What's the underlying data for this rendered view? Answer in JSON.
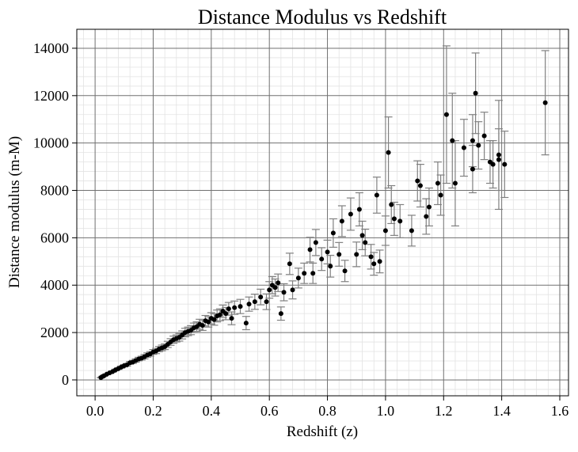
{
  "chart_data": {
    "type": "errorbar-scatter",
    "title": "Distance Modulus vs Redshift",
    "x_label": "Redshift (z)",
    "y_label": "Distance modulus (m-M)",
    "xlim": [
      -0.063,
      1.63
    ],
    "ylim": [
      -670,
      14800
    ],
    "xticks": [
      {
        "value": 0,
        "label": "0.0"
      },
      0.2,
      0.4,
      0.6,
      0.8,
      {
        "value": 1,
        "label": "1.0"
      },
      1.2,
      1.4,
      1.6
    ],
    "yticks": [
      0,
      2000,
      4000,
      6000,
      8000,
      10000,
      12000,
      14000
    ],
    "grid": true,
    "minor_grid_divisions": 5,
    "series": [
      {
        "color": "#000000",
        "error_color": "#808080",
        "x": [
          0.02,
          0.025,
          0.03,
          0.04,
          0.05,
          0.06,
          0.07,
          0.08,
          0.09,
          0.1,
          0.11,
          0.12,
          0.13,
          0.14,
          0.15,
          0.16,
          0.17,
          0.18,
          0.19,
          0.2,
          0.21,
          0.22,
          0.23,
          0.24,
          0.25,
          0.26,
          0.27,
          0.28,
          0.29,
          0.3,
          0.31,
          0.32,
          0.33,
          0.34,
          0.35,
          0.36,
          0.37,
          0.38,
          0.39,
          0.4,
          0.41,
          0.42,
          0.43,
          0.44,
          0.45,
          0.46,
          0.47,
          0.48,
          0.5,
          0.52,
          0.53,
          0.55,
          0.57,
          0.59,
          0.6,
          0.61,
          0.62,
          0.63,
          0.64,
          0.65,
          0.67,
          0.68,
          0.7,
          0.72,
          0.74,
          0.75,
          0.76,
          0.78,
          0.8,
          0.81,
          0.82,
          0.84,
          0.85,
          0.86,
          0.88,
          0.9,
          0.91,
          0.92,
          0.93,
          0.95,
          0.96,
          0.97,
          0.98,
          1.0,
          1.01,
          1.02,
          1.03,
          1.05,
          1.09,
          1.11,
          1.12,
          1.14,
          1.15,
          1.18,
          1.19,
          1.21,
          1.23,
          1.24,
          1.27,
          1.3,
          1.3,
          1.31,
          1.32,
          1.34,
          1.36,
          1.37,
          1.39,
          1.39,
          1.41,
          1.55
        ],
        "values": [
          100,
          140,
          170,
          240,
          300,
          350,
          420,
          480,
          540,
          600,
          640,
          720,
          760,
          820,
          880,
          920,
          980,
          1050,
          1100,
          1180,
          1220,
          1300,
          1350,
          1400,
          1500,
          1600,
          1700,
          1750,
          1800,
          1900,
          2000,
          2050,
          2100,
          2200,
          2250,
          2350,
          2300,
          2500,
          2450,
          2600,
          2550,
          2700,
          2750,
          2900,
          2800,
          3000,
          2600,
          3050,
          3100,
          2400,
          3200,
          3300,
          3500,
          3300,
          3800,
          4000,
          3900,
          4100,
          2800,
          3700,
          4900,
          3800,
          4300,
          4500,
          5500,
          4500,
          5800,
          5100,
          5400,
          4800,
          6200,
          5300,
          6700,
          4600,
          7000,
          5300,
          7200,
          6100,
          5800,
          5200,
          4900,
          7800,
          5000,
          6300,
          9600,
          7400,
          6800,
          6700,
          6300,
          8400,
          8200,
          6900,
          7300,
          8300,
          7800,
          11200,
          10100,
          8300,
          9800,
          10100,
          8900,
          12100,
          9900,
          10300,
          9200,
          9100,
          9500,
          9300,
          9100,
          11700
        ],
        "errors": [
          10,
          12,
          15,
          20,
          25,
          30,
          35,
          40,
          45,
          50,
          55,
          60,
          65,
          70,
          75,
          80,
          90,
          90,
          95,
          100,
          110,
          110,
          120,
          120,
          130,
          140,
          150,
          150,
          160,
          170,
          180,
          180,
          190,
          200,
          200,
          210,
          210,
          220,
          220,
          240,
          240,
          250,
          250,
          260,
          260,
          270,
          270,
          280,
          300,
          280,
          300,
          320,
          330,
          330,
          350,
          360,
          360,
          370,
          280,
          360,
          450,
          380,
          420,
          430,
          520,
          430,
          550,
          480,
          500,
          460,
          600,
          500,
          650,
          450,
          680,
          520,
          700,
          600,
          560,
          520,
          480,
          760,
          480,
          620,
          1500,
          800,
          700,
          700,
          650,
          850,
          900,
          750,
          800,
          900,
          850,
          2900,
          2000,
          1800,
          1200,
          1100,
          1000,
          1700,
          1000,
          1000,
          900,
          1000,
          2300,
          1300,
          1400,
          2200
        ]
      }
    ]
  }
}
